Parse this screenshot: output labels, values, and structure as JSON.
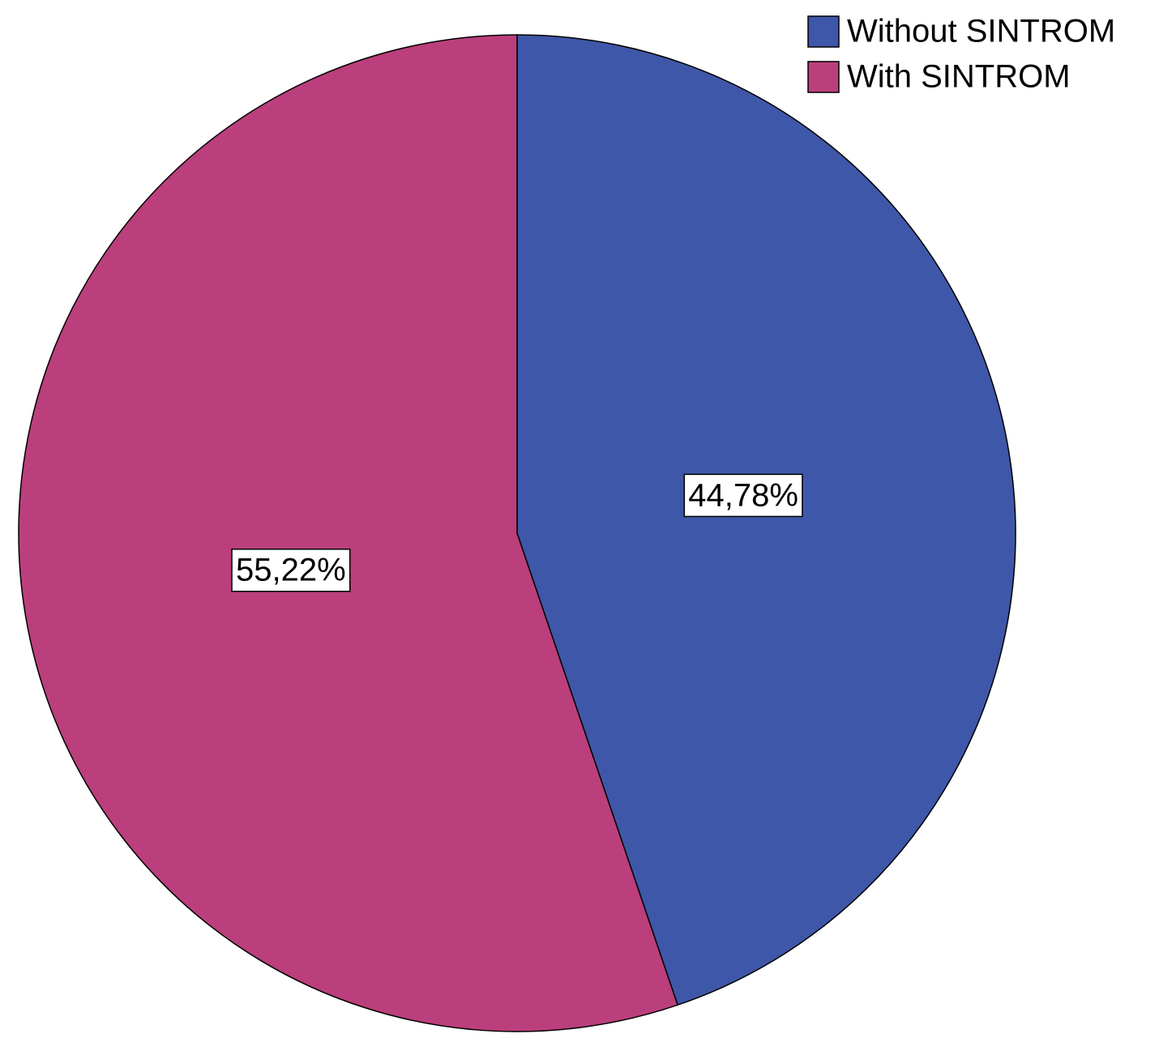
{
  "chart_data": {
    "type": "pie",
    "categories": [
      "Without SINTROM",
      "With SINTROM"
    ],
    "values": [
      44.78,
      55.22
    ],
    "value_labels": [
      "44,78%",
      "55,22%"
    ],
    "colors": [
      "#3f57a8",
      "#bb3f7c"
    ],
    "legend": "top-right"
  }
}
